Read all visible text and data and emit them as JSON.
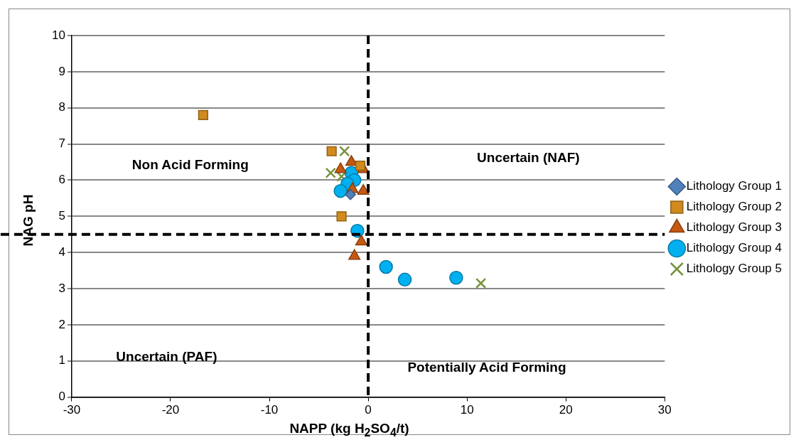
{
  "chart_data": {
    "type": "scatter",
    "xlabel": "NAPP (kg H$_{2}$SO$_{4}$/t)",
    "ylabel": "NAG pH",
    "xlim": [
      -30,
      30
    ],
    "xticks": [
      -30,
      -20,
      -10,
      0,
      10,
      20,
      30
    ],
    "ylim": [
      0,
      10
    ],
    "yticks": [
      0,
      1,
      2,
      3,
      4,
      5,
      6,
      7,
      8,
      9,
      10
    ],
    "grid": "y",
    "legend": "right",
    "series": [
      {
        "name": "Lithology Group 1",
        "color": "#4f81bd",
        "marker": "diamond",
        "x": [
          -1.8
        ],
        "values": [
          5.6
        ]
      },
      {
        "name": "Lithology Group 2",
        "color": "#d08a1e",
        "marker": "square",
        "x": [
          -16.7,
          -3.7,
          -0.8,
          -2.7
        ],
        "values": [
          7.8,
          6.8,
          6.4,
          5.0
        ]
      },
      {
        "name": "Lithology Group 3",
        "color": "#c65911",
        "marker": "triangle",
        "x": [
          -2.8,
          -1.7,
          -0.5,
          -1.6,
          -0.5,
          -0.7,
          -1.4
        ],
        "values": [
          6.3,
          6.5,
          6.3,
          5.75,
          5.7,
          4.3,
          3.9
        ]
      },
      {
        "name": "Lithology Group 4",
        "color": "#00b0f0",
        "marker": "circle",
        "x": [
          -1.7,
          -1.4,
          -2.1,
          -2.8,
          -1.1,
          1.8,
          3.7,
          8.9
        ],
        "values": [
          6.2,
          6.0,
          5.9,
          5.7,
          4.6,
          3.6,
          3.25,
          3.3
        ]
      },
      {
        "name": "Lithology Group 5",
        "color": "#77933c",
        "marker": "cross",
        "x": [
          -2.4,
          -3.8,
          -2.7,
          11.4
        ],
        "values": [
          6.8,
          6.2,
          6.1,
          3.15
        ]
      }
    ],
    "ref_lines": [
      {
        "axis": "x",
        "value": 0,
        "color": "#000000",
        "line_style": "dashed"
      },
      {
        "axis": "y",
        "value": 4.5,
        "color": "#000000",
        "line_style": "dashed"
      }
    ],
    "annotations": [
      "Non Acid Forming",
      "Uncertain (NAF)",
      "Uncertain (PAF)",
      "Potentially Acid Forming"
    ]
  }
}
